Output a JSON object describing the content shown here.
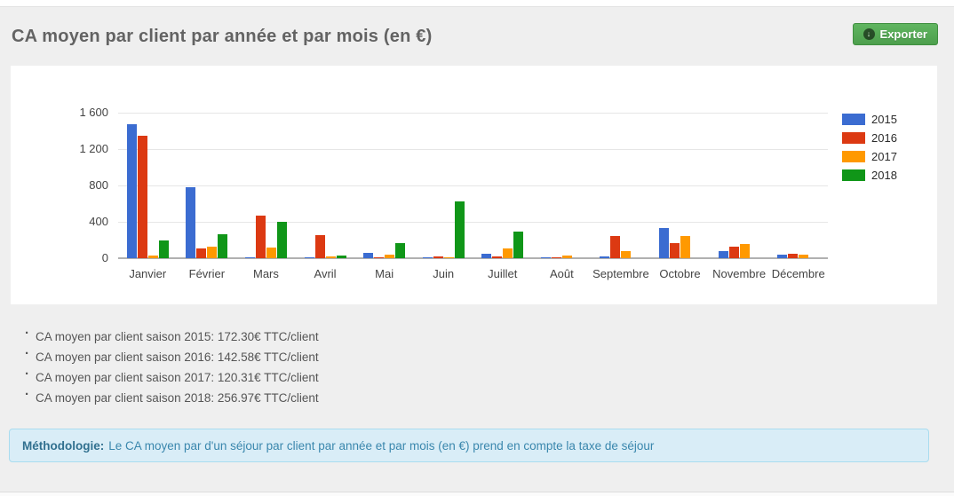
{
  "header": {
    "title": "CA moyen par client par année et par mois (en €)",
    "export_label": "Exporter",
    "export_icon_glyph": "↓"
  },
  "chart_data": {
    "type": "bar",
    "title": "CA moyen par client par année et par mois (en €)",
    "xlabel": "",
    "ylabel": "",
    "ylim": [
      0,
      1600
    ],
    "yticks": [
      0,
      400,
      800,
      1200,
      1600
    ],
    "ytick_labels": [
      "0",
      "400",
      "800",
      "1 200",
      "1 600"
    ],
    "grid": true,
    "legend_position": "right",
    "categories": [
      "Janvier",
      "Février",
      "Mars",
      "Avril",
      "Mai",
      "Juin",
      "Juillet",
      "Août",
      "Septembre",
      "Octobre",
      "Novembre",
      "Décembre"
    ],
    "series": [
      {
        "name": "2015",
        "color": "#3b6cd1",
        "values": [
          1470,
          785,
          10,
          8,
          55,
          8,
          50,
          8,
          15,
          335,
          80,
          35
        ]
      },
      {
        "name": "2016",
        "color": "#dc3912",
        "values": [
          1345,
          105,
          465,
          250,
          10,
          20,
          15,
          8,
          245,
          165,
          125,
          50
        ]
      },
      {
        "name": "2017",
        "color": "#ff9900",
        "values": [
          30,
          130,
          120,
          15,
          35,
          5,
          105,
          32,
          78,
          245,
          155,
          38
        ]
      },
      {
        "name": "2018",
        "color": "#109618",
        "values": [
          195,
          260,
          400,
          30,
          165,
          620,
          295,
          0,
          0,
          0,
          0,
          0
        ]
      }
    ]
  },
  "summary": {
    "items": [
      "CA moyen par client saison 2015: 172.30€ TTC/client",
      "CA moyen par client saison 2016: 142.58€ TTC/client",
      "CA moyen par client saison 2017: 120.31€ TTC/client",
      "CA moyen par client saison 2018: 256.97€ TTC/client"
    ]
  },
  "methodology": {
    "label": "Méthodologie:",
    "text": "Le CA moyen par d'un séjour par client par année et par mois (en €) prend en compte la taxe de séjour"
  }
}
